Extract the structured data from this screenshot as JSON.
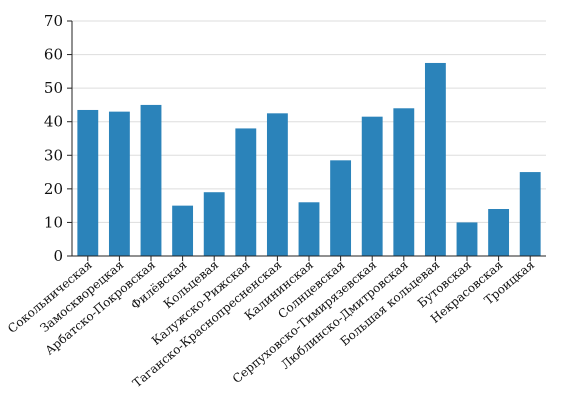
{
  "chart_data": {
    "type": "bar",
    "title": "",
    "xlabel": "",
    "ylabel": "",
    "ylim": [
      0,
      70
    ],
    "yticks": [
      0,
      10,
      20,
      30,
      40,
      50,
      60,
      70
    ],
    "grid": true,
    "bar_color": "#2b83ba",
    "categories": [
      "Сокольническая",
      "Замоскворецкая",
      "Арбатско-Покровская",
      "Филёвская",
      "Кольцевая",
      "Калужско-Рижская",
      "Таганско-Краснопресненская",
      "Калининская",
      "Солнцевская",
      "Серпуховско-Тимирязевская",
      "Люблинско-Дмитровская",
      "Большая кольцевая",
      "Бутовская",
      "Некрасовская",
      "Троицкая"
    ],
    "values": [
      43.5,
      43,
      45,
      15,
      19,
      38,
      42.5,
      16,
      28.5,
      41.5,
      44,
      57.5,
      10,
      14,
      25
    ]
  }
}
